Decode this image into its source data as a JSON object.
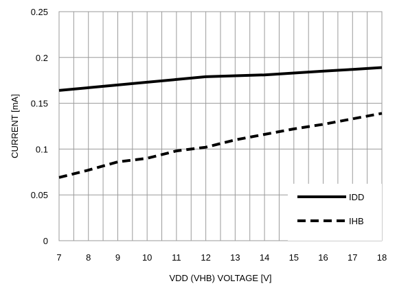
{
  "chart_data": {
    "type": "line",
    "xlabel": "VDD (VHB) VOLTAGE [V]",
    "ylabel": "CURRENT [mA]",
    "xlim": [
      7,
      18
    ],
    "ylim": [
      0,
      0.25
    ],
    "x_ticks": [
      "7",
      "8",
      "9",
      "10",
      "11",
      "12",
      "13",
      "14",
      "15",
      "16",
      "17",
      "18"
    ],
    "y_ticks": [
      "0",
      "0.05",
      "0.1",
      "0.15",
      "0.2",
      "0.25"
    ],
    "x_minor_step": 0.5,
    "grid": true,
    "legend_position": "bottom-right",
    "series": [
      {
        "name": "IDD",
        "style": "solid",
        "color": "#000000",
        "x": [
          7,
          8,
          9,
          10,
          11,
          12,
          13,
          14,
          15,
          16,
          17,
          18
        ],
        "y": [
          0.164,
          0.167,
          0.17,
          0.173,
          0.176,
          0.179,
          0.18,
          0.181,
          0.183,
          0.185,
          0.187,
          0.189
        ]
      },
      {
        "name": "IHB",
        "style": "dashed",
        "color": "#000000",
        "x": [
          7,
          8,
          9,
          10,
          11,
          12,
          13,
          14,
          15,
          16,
          17,
          18
        ],
        "y": [
          0.069,
          0.077,
          0.086,
          0.09,
          0.098,
          0.102,
          0.11,
          0.116,
          0.122,
          0.127,
          0.133,
          0.139
        ]
      }
    ]
  }
}
